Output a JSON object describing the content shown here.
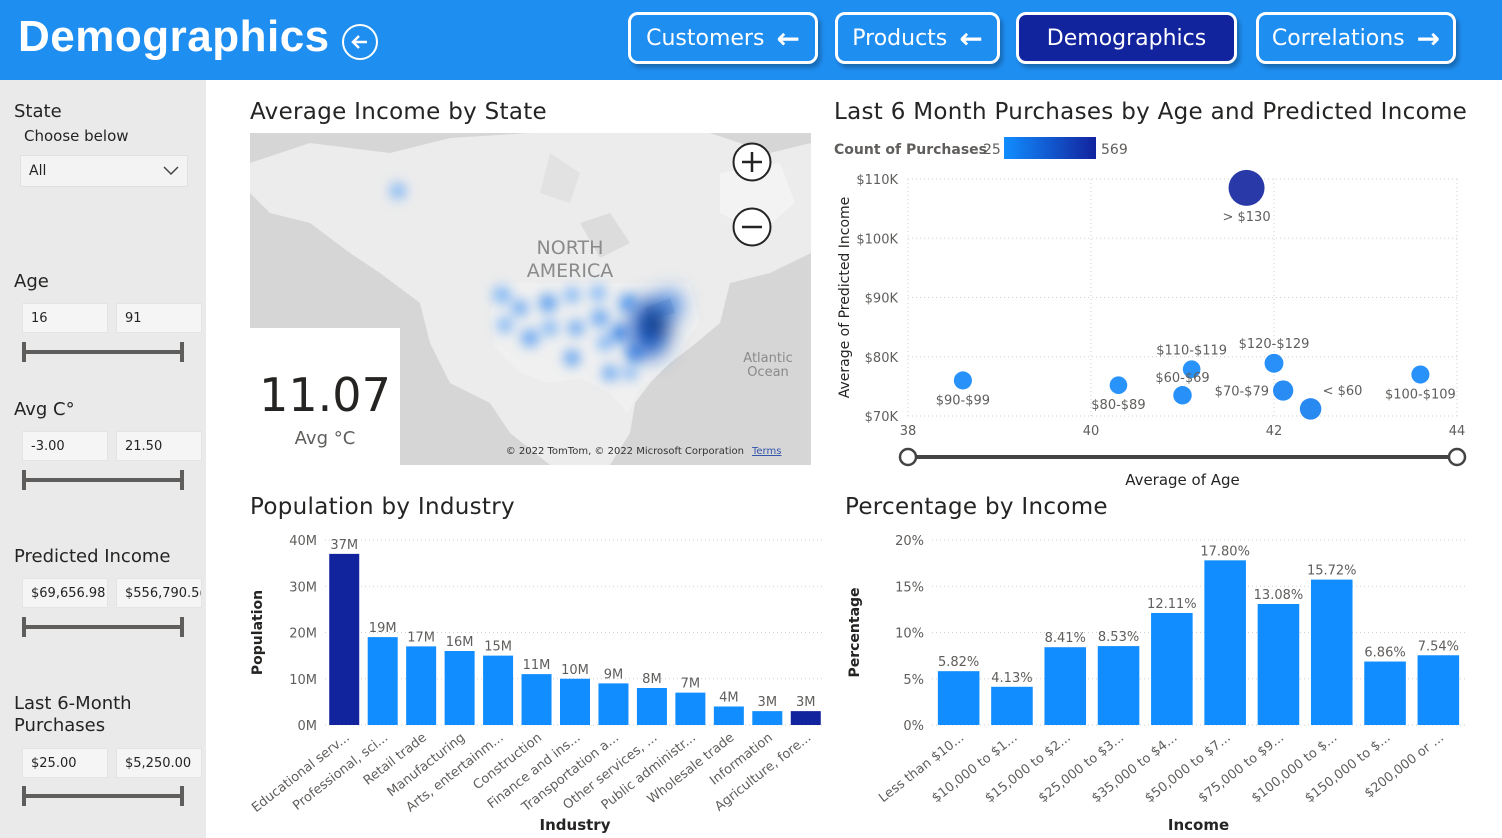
{
  "header": {
    "title": "Demographics",
    "nav": [
      {
        "label": "Customers",
        "arrow": "←",
        "active": false
      },
      {
        "label": "Products",
        "arrow": "←",
        "active": false
      },
      {
        "label": "Demographics",
        "arrow": "",
        "active": true
      },
      {
        "label": "Correlations",
        "arrow": "→",
        "active": false
      }
    ]
  },
  "filters": {
    "state": {
      "label": "State",
      "sub": "Choose below",
      "value": "All"
    },
    "age": {
      "label": "Age",
      "min": "16",
      "max": "91"
    },
    "avg_c": {
      "label": "Avg C°",
      "min": "-3.00",
      "max": "21.50"
    },
    "predicted_income": {
      "label": "Predicted Income",
      "min": "$69,656.98",
      "max": "$556,790.5("
    },
    "purchases": {
      "label": "Last 6-Month\nPurchases",
      "line1": "Last 6-Month",
      "line2": "Purchases",
      "min": "$25.00",
      "max": "$5,250.00"
    }
  },
  "map_visual": {
    "title": "Average Income by State",
    "region_label_1": "NORTH",
    "region_label_2": "AMERICA",
    "ocean_label_1": "Atlantic",
    "ocean_label_2": "Ocean",
    "attribution": "© 2022 TomTom, © 2022 Microsoft Corporation",
    "terms": "Terms",
    "card_value": "11.07",
    "card_label": "Avg °C"
  },
  "scatter_visual": {
    "title": "Last 6 Month Purchases by Age and Predicted Income"
  },
  "industry_visual": {
    "title": "Population by Industry"
  },
  "income_visual": {
    "title": "Percentage by Income"
  },
  "colors": {
    "header": "#1f8ef1",
    "active_nav": "#12239e",
    "bar": "#118dff",
    "bar_dark": "#12239e"
  },
  "chart_data": [
    {
      "type": "scatter",
      "title": "Last 6 Month Purchases by Age and Predicted Income",
      "xlabel": "Average of Age",
      "ylabel": "Average of Predicted Income",
      "xlim": [
        38,
        44
      ],
      "ylim": [
        70000,
        110000
      ],
      "xticks": [
        "38",
        "40",
        "42",
        "44"
      ],
      "yticks": [
        "$70K",
        "$80K",
        "$90K",
        "$100K",
        "$110K"
      ],
      "legend": {
        "title": "Count of Purchases",
        "min": "25",
        "max": "569"
      },
      "points": [
        {
          "label": "> $130",
          "x": 41.7,
          "y": 108500,
          "count": 569
        },
        {
          "label": "$90-$99",
          "x": 38.6,
          "y": 76000,
          "count": 60
        },
        {
          "label": "$80-$89",
          "x": 40.3,
          "y": 75200,
          "count": 55
        },
        {
          "label": "$110-$119",
          "x": 41.1,
          "y": 77900,
          "count": 55
        },
        {
          "label": "$60-$69",
          "x": 41.0,
          "y": 73500,
          "count": 65
        },
        {
          "label": "$120-$129",
          "x": 42.0,
          "y": 78900,
          "count": 70
        },
        {
          "label": "$70-$79",
          "x": 42.1,
          "y": 74300,
          "count": 90
        },
        {
          "label": "< $60",
          "x": 42.4,
          "y": 71200,
          "count": 110
        },
        {
          "label": "$100-$109",
          "x": 43.6,
          "y": 77000,
          "count": 60
        }
      ]
    },
    {
      "type": "bar",
      "title": "Population by Industry",
      "xlabel": "Industry",
      "ylabel": "Population",
      "ylim": [
        0,
        40
      ],
      "yticks": [
        "0M",
        "10M",
        "20M",
        "30M",
        "40M"
      ],
      "categories": [
        "Educational serv...",
        "Professional, sci...",
        "Retail trade",
        "Manufacturing",
        "Arts, entertainm...",
        "Construction",
        "Finance and ins...",
        "Transportation a...",
        "Other services, ...",
        "Public administr...",
        "Wholesale trade",
        "Information",
        "Agriculture, fore..."
      ],
      "values": [
        37,
        19,
        17,
        16,
        15,
        11,
        10,
        9,
        8,
        7,
        4,
        3,
        3
      ],
      "labels": [
        "37M",
        "19M",
        "17M",
        "16M",
        "15M",
        "11M",
        "10M",
        "9M",
        "8M",
        "7M",
        "4M",
        "3M",
        "3M"
      ]
    },
    {
      "type": "bar",
      "title": "Percentage by Income",
      "xlabel": "Income",
      "ylabel": "Percentage",
      "ylim": [
        0,
        20
      ],
      "yticks": [
        "0%",
        "5%",
        "10%",
        "15%",
        "20%"
      ],
      "categories": [
        "Less than $10...",
        "$10,000 to $1...",
        "$15,000 to $2...",
        "$25,000 to $3...",
        "$35,000 to $4...",
        "$50,000 to $7...",
        "$75,000 to $9...",
        "$100,000 to $...",
        "$150,000 to $...",
        "$200,000 or ..."
      ],
      "values": [
        5.82,
        4.13,
        8.41,
        8.53,
        12.11,
        17.8,
        13.08,
        15.72,
        6.86,
        7.54
      ],
      "labels": [
        "5.82%",
        "4.13%",
        "8.41%",
        "8.53%",
        "12.11%",
        "17.80%",
        "13.08%",
        "15.72%",
        "6.86%",
        "7.54%"
      ]
    }
  ]
}
